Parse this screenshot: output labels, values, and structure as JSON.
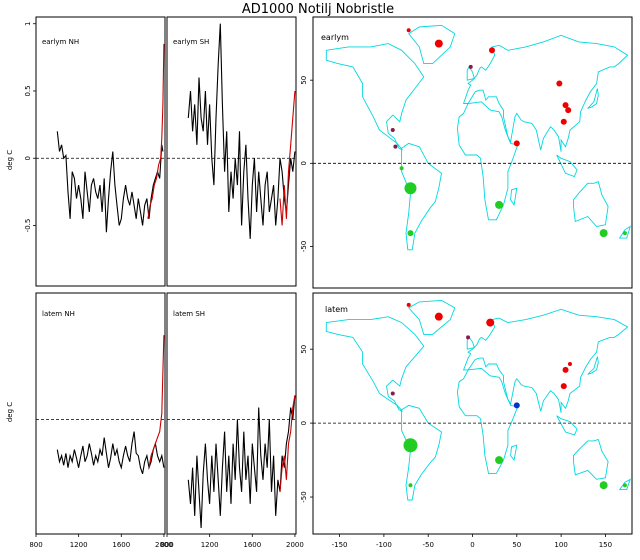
{
  "title": "AD1000 Notilj Nobristle",
  "ts_ylabel": "deg C",
  "colors": {
    "series": "#000000",
    "recent": "#cc0000",
    "zero_line": "#000000",
    "coast": "#00d8e0",
    "warm": "#ee0000",
    "cool": "#22cc22",
    "neutral": "#0033cc"
  },
  "chart_data": [
    {
      "type": "line",
      "panel": "earlym-nh",
      "label": "earlym NH",
      "xlim": [
        800,
        2010
      ],
      "ylim": [
        -0.95,
        1.05
      ],
      "yticks": [
        -0.5,
        0.0,
        0.5,
        1.0
      ],
      "xticks": [
        800,
        1200,
        1600,
        2000
      ],
      "zero_line": true,
      "series": [
        {
          "color": "black",
          "x": [
            1000,
            1020,
            1040,
            1060,
            1080,
            1100,
            1120,
            1140,
            1160,
            1180,
            1200,
            1220,
            1240,
            1260,
            1280,
            1300,
            1320,
            1340,
            1360,
            1380,
            1400,
            1420,
            1440,
            1460,
            1480,
            1500,
            1520,
            1540,
            1560,
            1580,
            1600,
            1620,
            1640,
            1660,
            1680,
            1700,
            1720,
            1740,
            1760,
            1780,
            1800,
            1820,
            1840,
            1860,
            1880,
            1900,
            1920,
            1940,
            1960,
            1980,
            1990
          ],
          "y": [
            0.2,
            0.05,
            0.1,
            0.0,
            0.02,
            -0.25,
            -0.45,
            -0.1,
            -0.15,
            -0.3,
            -0.2,
            -0.3,
            -0.45,
            -0.1,
            -0.25,
            -0.4,
            -0.2,
            -0.15,
            -0.25,
            -0.3,
            -0.2,
            -0.4,
            -0.15,
            -0.55,
            -0.3,
            -0.1,
            0.05,
            -0.2,
            -0.35,
            -0.5,
            -0.45,
            -0.3,
            -0.2,
            -0.3,
            -0.35,
            -0.25,
            -0.35,
            -0.45,
            -0.3,
            -0.4,
            -0.5,
            -0.35,
            -0.3,
            -0.45,
            -0.3,
            -0.2,
            -0.15,
            -0.1,
            -0.15,
            0.1,
            0.05
          ]
        },
        {
          "color": "red",
          "x": [
            1850,
            1870,
            1890,
            1910,
            1930,
            1950,
            1970,
            1980,
            1990,
            2000
          ],
          "y": [
            -0.45,
            -0.35,
            -0.3,
            -0.2,
            -0.15,
            -0.05,
            0.0,
            0.15,
            0.4,
            0.85
          ]
        }
      ]
    },
    {
      "type": "line",
      "panel": "earlym-sh",
      "label": "earlym SH",
      "xlim": [
        800,
        2010
      ],
      "ylim": [
        -0.95,
        1.05
      ],
      "xticks": [
        800,
        1200,
        1600,
        2000
      ],
      "zero_line": true,
      "series": [
        {
          "color": "black",
          "x": [
            1000,
            1020,
            1040,
            1060,
            1080,
            1100,
            1120,
            1140,
            1160,
            1180,
            1200,
            1220,
            1240,
            1260,
            1280,
            1300,
            1320,
            1340,
            1360,
            1380,
            1400,
            1420,
            1440,
            1460,
            1480,
            1500,
            1520,
            1540,
            1560,
            1580,
            1600,
            1620,
            1640,
            1660,
            1680,
            1700,
            1720,
            1740,
            1760,
            1780,
            1800,
            1820,
            1840,
            1860,
            1880,
            1900,
            1920,
            1940,
            1960,
            1980,
            2000
          ],
          "y": [
            0.3,
            0.5,
            0.2,
            0.4,
            0.1,
            0.6,
            0.3,
            0.2,
            0.5,
            0.1,
            0.4,
            0.0,
            -0.2,
            0.3,
            0.7,
            1.0,
            0.4,
            -0.1,
            0.2,
            -0.4,
            -0.1,
            -0.3,
            0.0,
            -0.2,
            0.2,
            -0.5,
            -0.1,
            0.1,
            -0.3,
            -0.6,
            -0.2,
            0.0,
            -0.4,
            -0.1,
            -0.3,
            -0.5,
            -0.2,
            -0.1,
            -0.4,
            -0.3,
            -0.2,
            -0.5,
            -0.3,
            0.0,
            -0.1,
            -0.3,
            -0.4,
            -0.2,
            0.0,
            -0.1,
            0.05
          ]
        },
        {
          "color": "red",
          "x": [
            1860,
            1880,
            1900,
            1920,
            1940,
            1960,
            1980,
            2000
          ],
          "y": [
            -0.3,
            -0.5,
            -0.2,
            -0.45,
            -0.1,
            0.1,
            0.3,
            0.5
          ]
        }
      ]
    },
    {
      "type": "line",
      "panel": "latem-nh",
      "label": "latem NH",
      "xlim": [
        800,
        2010
      ],
      "ylim": [
        -0.95,
        1.05
      ],
      "xticks": [
        800,
        1200,
        1600,
        2000
      ],
      "zero_line": true,
      "series": [
        {
          "color": "black",
          "x": [
            1000,
            1020,
            1040,
            1060,
            1080,
            1100,
            1120,
            1140,
            1160,
            1180,
            1200,
            1220,
            1240,
            1260,
            1280,
            1300,
            1320,
            1340,
            1360,
            1380,
            1400,
            1420,
            1440,
            1460,
            1480,
            1500,
            1520,
            1540,
            1560,
            1580,
            1600,
            1620,
            1640,
            1660,
            1680,
            1700,
            1720,
            1740,
            1760,
            1780,
            1800,
            1820,
            1840,
            1860,
            1880,
            1900,
            1920,
            1940,
            1960,
            1980,
            2000
          ],
          "y": [
            -0.25,
            -0.35,
            -0.3,
            -0.38,
            -0.28,
            -0.4,
            -0.3,
            -0.35,
            -0.25,
            -0.32,
            -0.4,
            -0.3,
            -0.22,
            -0.35,
            -0.3,
            -0.2,
            -0.28,
            -0.38,
            -0.3,
            -0.35,
            -0.25,
            -0.3,
            -0.15,
            -0.28,
            -0.4,
            -0.32,
            -0.2,
            -0.3,
            -0.25,
            -0.35,
            -0.4,
            -0.3,
            -0.22,
            -0.3,
            -0.35,
            -0.2,
            -0.1,
            -0.28,
            -0.3,
            -0.4,
            -0.45,
            -0.35,
            -0.3,
            -0.4,
            -0.35,
            -0.25,
            -0.2,
            -0.3,
            -0.35,
            -0.3,
            -0.4
          ]
        },
        {
          "color": "red",
          "x": [
            1860,
            1880,
            1900,
            1920,
            1940,
            1960,
            1980,
            1990,
            2000
          ],
          "y": [
            -0.4,
            -0.3,
            -0.25,
            -0.2,
            -0.15,
            -0.1,
            0.05,
            0.4,
            0.7
          ]
        }
      ]
    },
    {
      "type": "line",
      "panel": "latem-sh",
      "label": "latem SH",
      "xlim": [
        800,
        2010
      ],
      "ylim": [
        -0.95,
        1.05
      ],
      "xticks": [
        800,
        1200,
        1600,
        2000
      ],
      "zero_line": true,
      "series": [
        {
          "color": "black",
          "x": [
            1000,
            1020,
            1040,
            1060,
            1080,
            1100,
            1120,
            1140,
            1160,
            1180,
            1200,
            1220,
            1240,
            1260,
            1280,
            1300,
            1320,
            1340,
            1360,
            1380,
            1400,
            1420,
            1440,
            1460,
            1480,
            1500,
            1520,
            1540,
            1560,
            1580,
            1600,
            1620,
            1640,
            1660,
            1680,
            1700,
            1720,
            1740,
            1760,
            1780,
            1800,
            1820,
            1840,
            1860,
            1880,
            1900,
            1920,
            1940,
            1960,
            1980,
            2000
          ],
          "y": [
            -0.5,
            -0.7,
            -0.4,
            -0.8,
            -0.3,
            -0.6,
            -0.9,
            -0.45,
            -0.2,
            -0.5,
            -0.7,
            -0.3,
            -0.6,
            -0.2,
            -0.5,
            -0.8,
            -0.4,
            -0.1,
            -0.6,
            -0.3,
            -0.7,
            -0.2,
            -0.5,
            0.0,
            -0.4,
            -0.6,
            -0.1,
            -0.5,
            -0.3,
            -0.7,
            -0.2,
            -0.4,
            -0.6,
            0.1,
            -0.3,
            -0.5,
            -0.2,
            -0.4,
            0.0,
            -0.6,
            -0.3,
            -0.8,
            -0.5,
            -0.6,
            -0.3,
            -0.4,
            -0.2,
            -0.1,
            0.1,
            0.0,
            0.2
          ]
        },
        {
          "color": "red",
          "x": [
            1860,
            1880,
            1900,
            1920,
            1940,
            1960,
            1980,
            2000
          ],
          "y": [
            -0.6,
            -0.4,
            -0.3,
            -0.5,
            -0.2,
            -0.1,
            0.1,
            0.2
          ]
        }
      ]
    },
    {
      "type": "scatter",
      "panel": "map-earlym",
      "label": "earlym",
      "xlim": [
        -180,
        180
      ],
      "ylim": [
        -75,
        88
      ],
      "xticks": [
        -150,
        -100,
        -50,
        0,
        50,
        100,
        150
      ],
      "yticks": [
        -50,
        0,
        50
      ],
      "zero_line": true,
      "points": [
        {
          "lon": -72,
          "lat": 80,
          "s": 2,
          "c": "warm"
        },
        {
          "lon": -38,
          "lat": 72,
          "s": 4,
          "c": "warm"
        },
        {
          "lon": 22,
          "lat": 68,
          "s": 3,
          "c": "warm"
        },
        {
          "lon": -2,
          "lat": 58,
          "s": 2,
          "c": "mixed"
        },
        {
          "lon": 98,
          "lat": 48,
          "s": 3,
          "c": "warm"
        },
        {
          "lon": 105,
          "lat": 35,
          "s": 3,
          "c": "warm"
        },
        {
          "lon": 108,
          "lat": 32,
          "s": 3,
          "c": "warm"
        },
        {
          "lon": 103,
          "lat": 25,
          "s": 3,
          "c": "warm"
        },
        {
          "lon": 50,
          "lat": 12,
          "s": 3,
          "c": "warm"
        },
        {
          "lon": -90,
          "lat": 20,
          "s": 2,
          "c": "mixed"
        },
        {
          "lon": -87,
          "lat": 10,
          "s": 2,
          "c": "mixed"
        },
        {
          "lon": -80,
          "lat": -3,
          "s": 2,
          "c": "cool"
        },
        {
          "lon": -70,
          "lat": -15,
          "s": 6,
          "c": "cool"
        },
        {
          "lon": 30,
          "lat": -25,
          "s": 4,
          "c": "cool"
        },
        {
          "lon": -70,
          "lat": -42,
          "s": 3,
          "c": "cool"
        },
        {
          "lon": 148,
          "lat": -42,
          "s": 4,
          "c": "cool"
        },
        {
          "lon": 172,
          "lat": -42,
          "s": 2,
          "c": "cool"
        }
      ]
    },
    {
      "type": "scatter",
      "panel": "map-latem",
      "label": "latem",
      "xlim": [
        -180,
        180
      ],
      "ylim": [
        -75,
        88
      ],
      "xticks": [
        -150,
        -100,
        -50,
        0,
        50,
        100,
        150
      ],
      "yticks": [
        -50,
        0,
        50
      ],
      "zero_line": true,
      "points": [
        {
          "lon": -72,
          "lat": 80,
          "s": 2,
          "c": "warm"
        },
        {
          "lon": -38,
          "lat": 72,
          "s": 4,
          "c": "warm"
        },
        {
          "lon": 20,
          "lat": 68,
          "s": 4,
          "c": "warm"
        },
        {
          "lon": -5,
          "lat": 58,
          "s": 2,
          "c": "mixed"
        },
        {
          "lon": 105,
          "lat": 36,
          "s": 3,
          "c": "warm"
        },
        {
          "lon": 110,
          "lat": 40,
          "s": 2,
          "c": "warm"
        },
        {
          "lon": 103,
          "lat": 25,
          "s": 3,
          "c": "warm"
        },
        {
          "lon": 50,
          "lat": 12,
          "s": 3,
          "c": "neutral"
        },
        {
          "lon": -90,
          "lat": 20,
          "s": 2,
          "c": "mixed"
        },
        {
          "lon": -70,
          "lat": -15,
          "s": 7,
          "c": "cool"
        },
        {
          "lon": 30,
          "lat": -25,
          "s": 4,
          "c": "cool"
        },
        {
          "lon": -70,
          "lat": -42,
          "s": 2,
          "c": "cool"
        },
        {
          "lon": 148,
          "lat": -42,
          "s": 4,
          "c": "cool"
        },
        {
          "lon": 172,
          "lat": -42,
          "s": 2,
          "c": "cool"
        }
      ]
    }
  ]
}
